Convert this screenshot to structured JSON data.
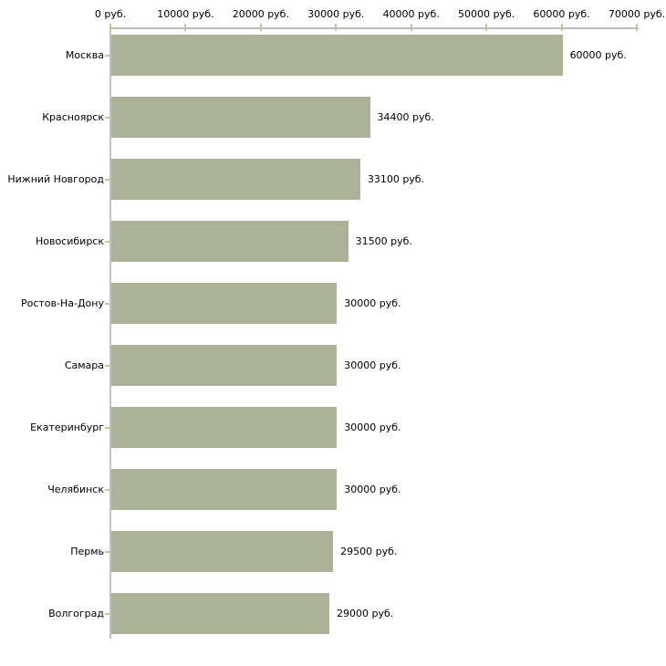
{
  "chart_data": {
    "type": "bar",
    "orientation": "horizontal",
    "title": "",
    "categories": [
      "Москва",
      "Красноярск",
      "Нижний Новгород",
      "Новосибирск",
      "Ростов-На-Дону",
      "Самара",
      "Екатеринбург",
      "Челябинск",
      "Пермь",
      "Волгоград"
    ],
    "values": [
      60000,
      34400,
      33100,
      31500,
      30000,
      30000,
      30000,
      30000,
      29500,
      29000
    ],
    "value_labels": [
      "60000 руб.",
      "34400 руб.",
      "33100 руб.",
      "31500 руб.",
      "30000 руб.",
      "30000 руб.",
      "30000 руб.",
      "30000 руб.",
      "29500 руб.",
      "29000 руб."
    ],
    "xlabel": "",
    "ylabel": "",
    "x_axis": {
      "position": "top",
      "min": 0,
      "max": 70000,
      "tick_step": 10000,
      "tick_values": [
        0,
        10000,
        20000,
        30000,
        40000,
        50000,
        60000,
        70000
      ],
      "tick_labels": [
        "0 руб.",
        "10000 руб.",
        "20000 руб.",
        "30000 руб.",
        "40000 руб.",
        "50000 руб.",
        "60000 руб.",
        "70000 руб."
      ]
    },
    "grid": false,
    "legend": false,
    "colors": {
      "bar": "#acb297",
      "axis_line": "#bdbdbd",
      "tick_mark": "#c6c69c",
      "text": "#000000",
      "background": "#ffffff"
    }
  }
}
